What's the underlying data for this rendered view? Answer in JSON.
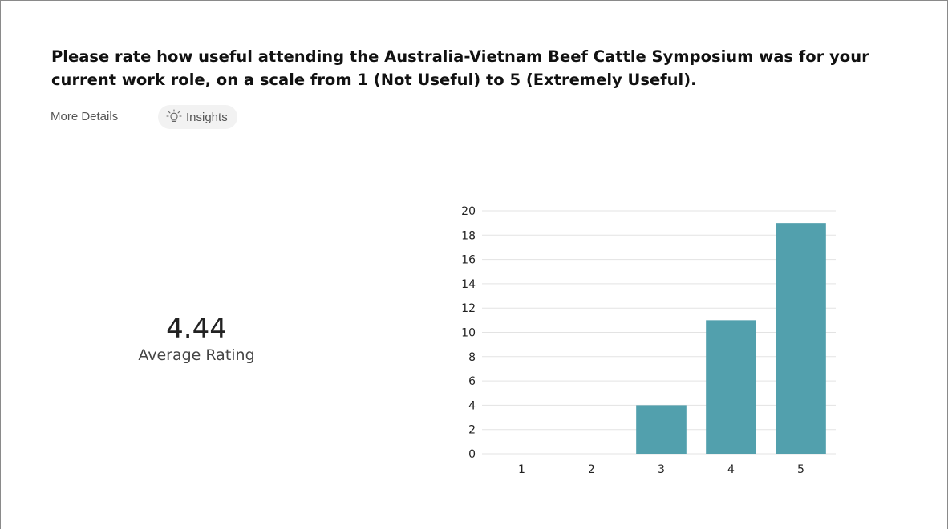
{
  "question": {
    "text": "Please rate how useful attending the Australia-Vietnam Beef Cattle Symposium was for your current work role, on a scale from 1 (Not Useful) to 5 (Extremely Useful)."
  },
  "links": {
    "more_details": "More Details"
  },
  "insights_button": {
    "label": "Insights",
    "icon": "lightbulb-icon"
  },
  "summary": {
    "average_value": "4.44",
    "average_label": "Average Rating"
  },
  "colors": {
    "bar": "#52a0ad",
    "grid": "#e3e3e3"
  },
  "chart_data": {
    "type": "bar",
    "categories": [
      "1",
      "2",
      "3",
      "4",
      "5"
    ],
    "values": [
      0,
      0,
      4,
      11,
      19
    ],
    "title": "",
    "xlabel": "",
    "ylabel": "",
    "ylim": [
      0,
      20
    ],
    "yticks": [
      0,
      2,
      4,
      6,
      8,
      10,
      12,
      14,
      16,
      18,
      20
    ],
    "grid": true,
    "legend": "none"
  }
}
